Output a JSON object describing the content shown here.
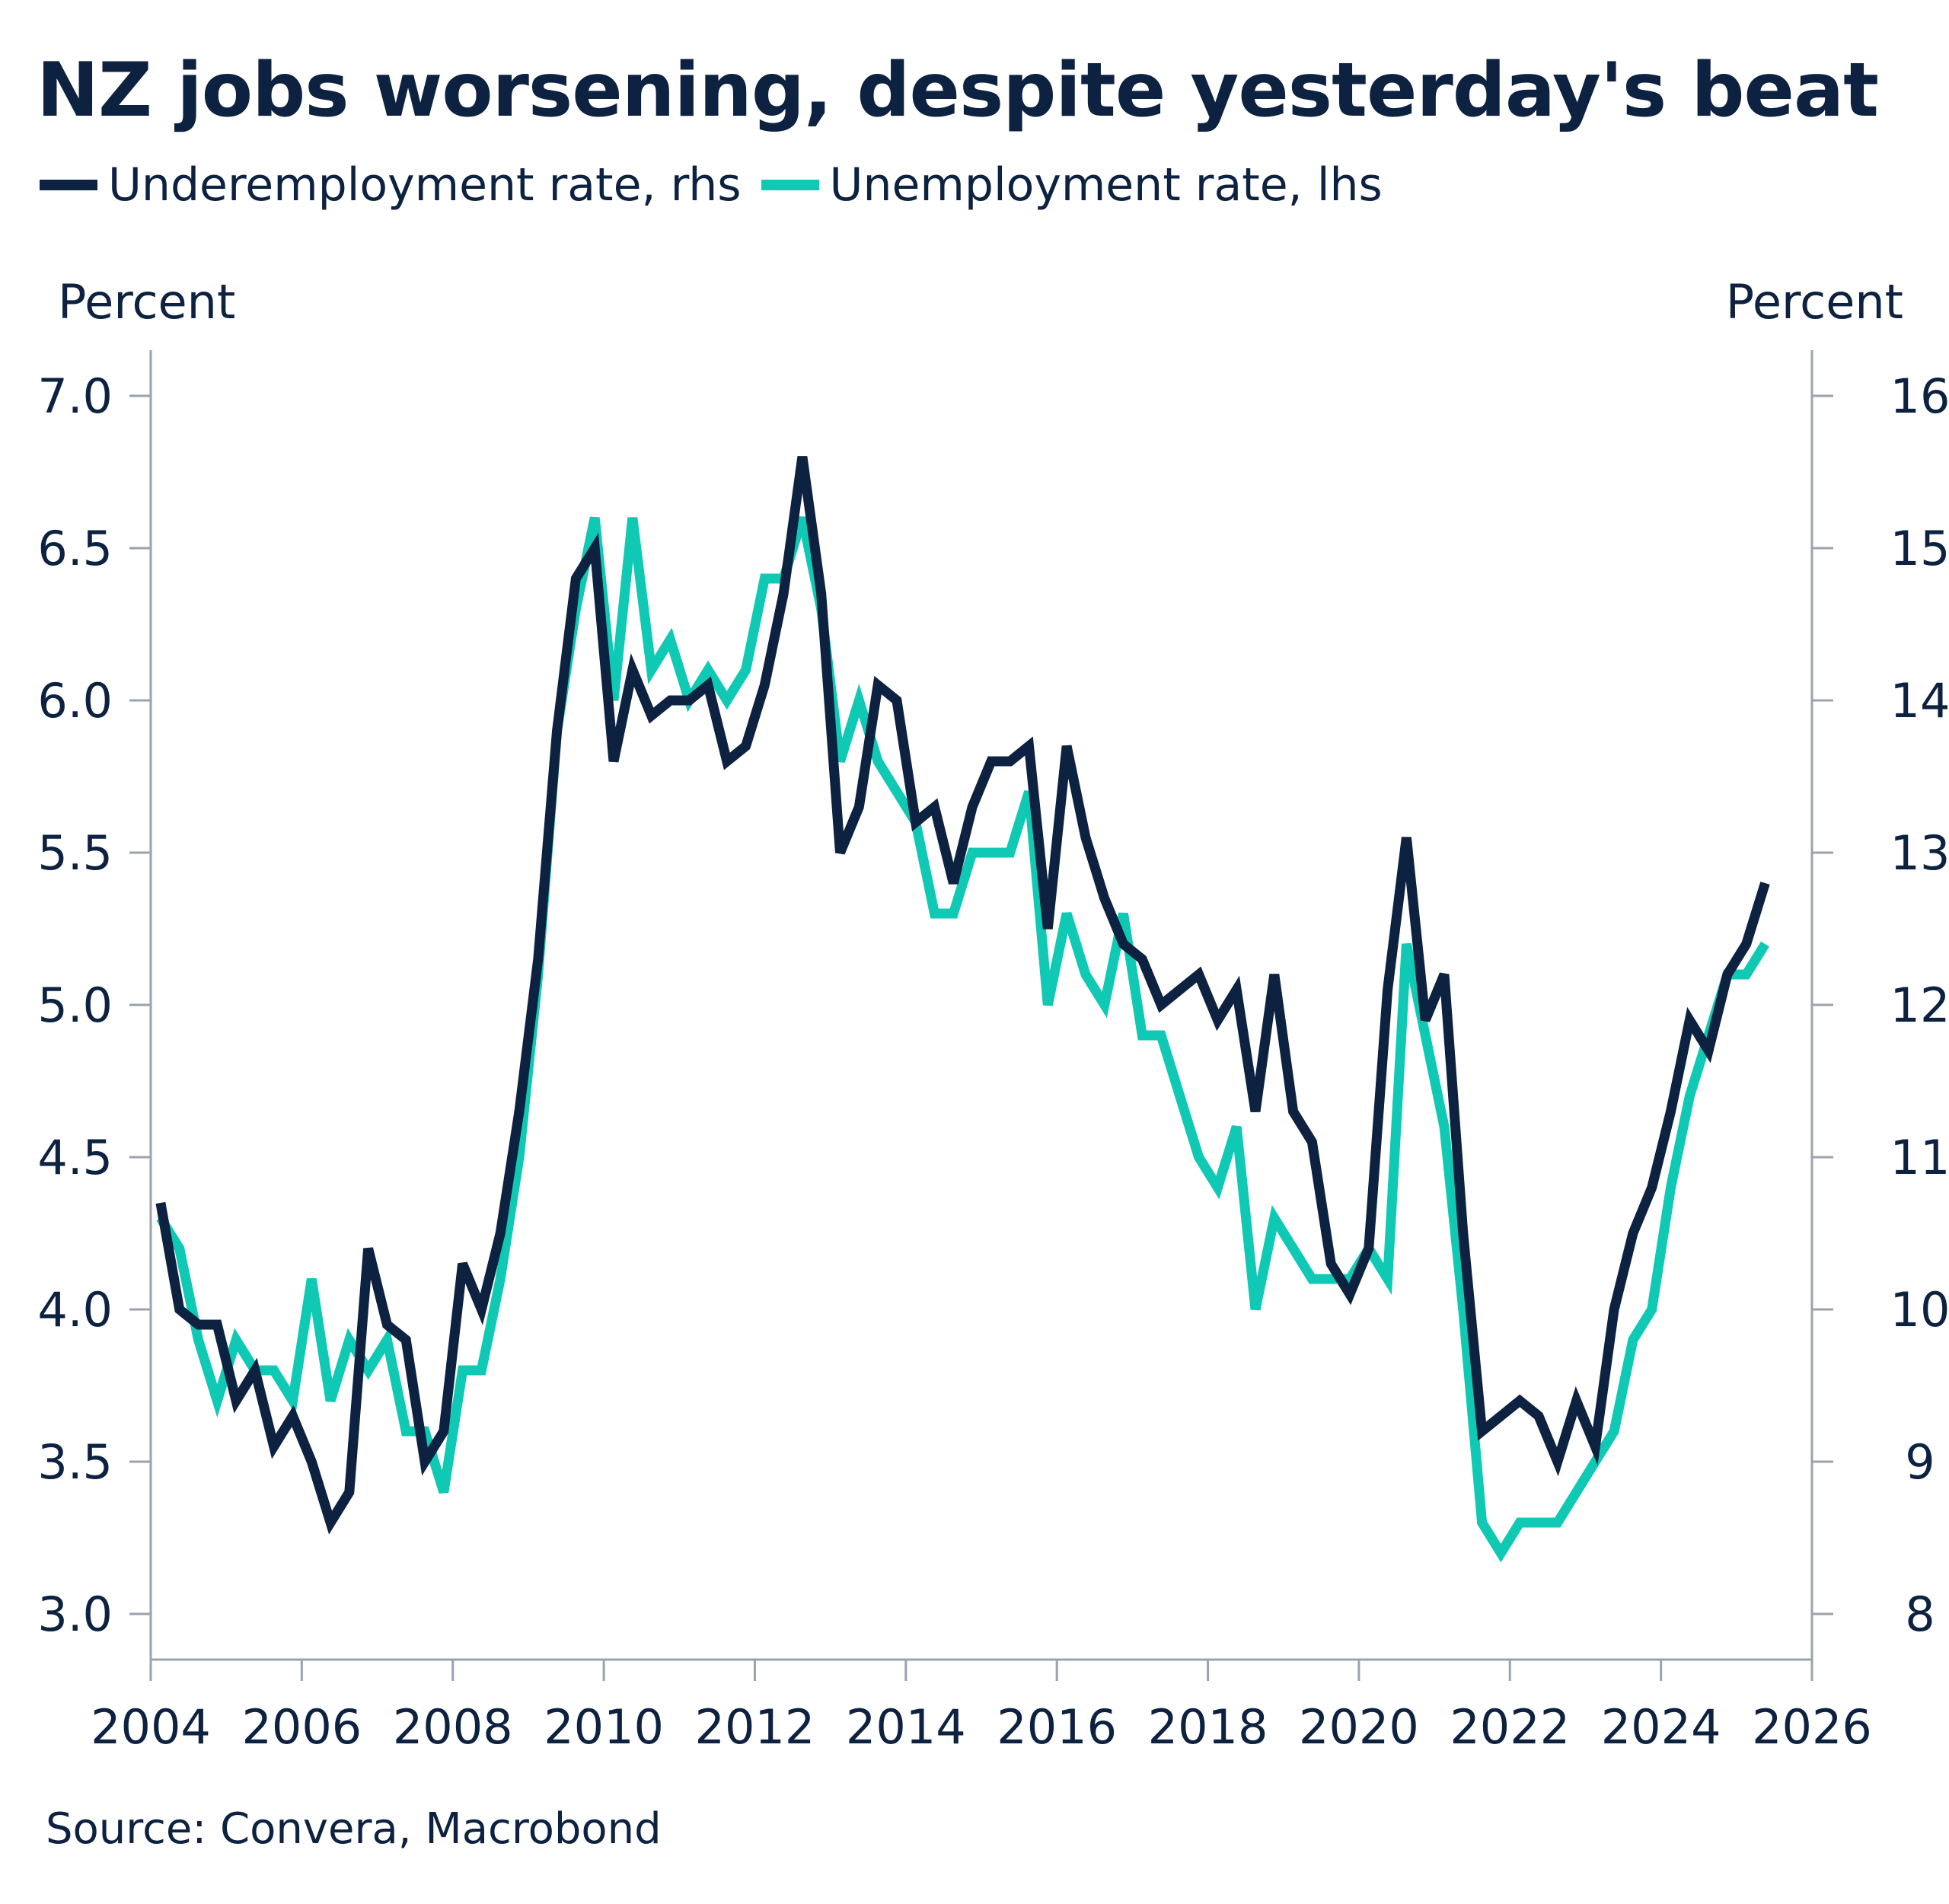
{
  "title": "NZ jobs worsening, despite yesterday's beat",
  "legend": [
    {
      "label": "Underemployment rate, rhs",
      "color": "#0d2140"
    },
    {
      "label": "Unemployment rate, lhs",
      "color": "#10c9b4"
    }
  ],
  "left_unit": "Percent",
  "right_unit": "Percent",
  "source": "Source: Convera, Macrobond",
  "chart_data": {
    "type": "line",
    "title": "NZ jobs worsening, despite yesterday's beat",
    "x_ticks": [
      2004,
      2006,
      2008,
      2010,
      2012,
      2014,
      2016,
      2018,
      2020,
      2022,
      2024,
      2026
    ],
    "xlim": [
      2004,
      2026
    ],
    "left_axis": {
      "label": "Percent",
      "ylim": [
        3.0,
        7.0
      ],
      "ticks": [
        "3.0",
        "3.5",
        "4.0",
        "4.5",
        "5.0",
        "5.5",
        "6.0",
        "6.5",
        "7.0"
      ]
    },
    "right_axis": {
      "label": "Percent",
      "ylim": [
        8,
        16
      ],
      "ticks": [
        "8",
        "9",
        "10",
        "11",
        "12",
        "13",
        "14",
        "15",
        "16"
      ]
    },
    "grid": false,
    "legend_position": "top-left",
    "series": [
      {
        "name": "Unemployment rate, lhs",
        "axis": "left",
        "color": "#10c9b4",
        "points": [
          [
            2004.13,
            4.3
          ],
          [
            2004.38,
            4.2
          ],
          [
            2004.63,
            3.9
          ],
          [
            2004.88,
            3.7
          ],
          [
            2005.13,
            3.9
          ],
          [
            2005.38,
            3.8
          ],
          [
            2005.63,
            3.8
          ],
          [
            2005.88,
            3.7
          ],
          [
            2006.13,
            4.1
          ],
          [
            2006.38,
            3.7
          ],
          [
            2006.63,
            3.9
          ],
          [
            2006.88,
            3.8
          ],
          [
            2007.13,
            3.9
          ],
          [
            2007.38,
            3.6
          ],
          [
            2007.63,
            3.6
          ],
          [
            2007.88,
            3.4
          ],
          [
            2008.13,
            3.8
          ],
          [
            2008.38,
            3.8
          ],
          [
            2008.63,
            4.1
          ],
          [
            2008.88,
            4.5
          ],
          [
            2009.13,
            5.1
          ],
          [
            2009.38,
            5.9
          ],
          [
            2009.63,
            6.3
          ],
          [
            2009.88,
            6.6
          ],
          [
            2010.13,
            6.0
          ],
          [
            2010.38,
            6.6
          ],
          [
            2010.63,
            6.1
          ],
          [
            2010.88,
            6.2
          ],
          [
            2011.13,
            6.0
          ],
          [
            2011.38,
            6.1
          ],
          [
            2011.63,
            6.0
          ],
          [
            2011.88,
            6.1
          ],
          [
            2012.13,
            6.4
          ],
          [
            2012.38,
            6.4
          ],
          [
            2012.63,
            6.6
          ],
          [
            2012.88,
            6.3
          ],
          [
            2013.13,
            5.8
          ],
          [
            2013.38,
            6.0
          ],
          [
            2013.63,
            5.8
          ],
          [
            2013.88,
            5.7
          ],
          [
            2014.13,
            5.6
          ],
          [
            2014.38,
            5.3
          ],
          [
            2014.63,
            5.3
          ],
          [
            2014.88,
            5.5
          ],
          [
            2015.13,
            5.5
          ],
          [
            2015.38,
            5.5
          ],
          [
            2015.63,
            5.7
          ],
          [
            2015.88,
            5.0
          ],
          [
            2016.13,
            5.3
          ],
          [
            2016.38,
            5.1
          ],
          [
            2016.63,
            5.0
          ],
          [
            2016.88,
            5.3
          ],
          [
            2017.13,
            4.9
          ],
          [
            2017.38,
            4.9
          ],
          [
            2017.63,
            4.7
          ],
          [
            2017.88,
            4.5
          ],
          [
            2018.13,
            4.4
          ],
          [
            2018.38,
            4.6
          ],
          [
            2018.63,
            4.0
          ],
          [
            2018.88,
            4.3
          ],
          [
            2019.13,
            4.2
          ],
          [
            2019.38,
            4.1
          ],
          [
            2019.63,
            4.1
          ],
          [
            2019.88,
            4.1
          ],
          [
            2020.13,
            4.2
          ],
          [
            2020.38,
            4.1
          ],
          [
            2020.63,
            5.2
          ],
          [
            2020.88,
            4.9
          ],
          [
            2021.13,
            4.6
          ],
          [
            2021.38,
            4.0
          ],
          [
            2021.63,
            3.3
          ],
          [
            2021.88,
            3.2
          ],
          [
            2022.13,
            3.3
          ],
          [
            2022.38,
            3.3
          ],
          [
            2022.63,
            3.3
          ],
          [
            2022.88,
            3.4
          ],
          [
            2023.13,
            3.5
          ],
          [
            2023.38,
            3.6
          ],
          [
            2023.63,
            3.9
          ],
          [
            2023.88,
            4.0
          ],
          [
            2024.13,
            4.4
          ],
          [
            2024.38,
            4.7
          ],
          [
            2024.63,
            4.9
          ],
          [
            2024.88,
            5.1
          ],
          [
            2025.13,
            5.1
          ],
          [
            2025.38,
            5.2
          ]
        ]
      },
      {
        "name": "Underemployment rate, rhs",
        "axis": "right",
        "color": "#0d2140",
        "points": [
          [
            2004.13,
            10.7
          ],
          [
            2004.38,
            10.0
          ],
          [
            2004.63,
            9.9
          ],
          [
            2004.88,
            9.9
          ],
          [
            2005.13,
            9.4
          ],
          [
            2005.38,
            9.6
          ],
          [
            2005.63,
            9.1
          ],
          [
            2005.88,
            9.3
          ],
          [
            2006.13,
            9.0
          ],
          [
            2006.38,
            8.6
          ],
          [
            2006.63,
            8.8
          ],
          [
            2006.88,
            10.4
          ],
          [
            2007.13,
            9.9
          ],
          [
            2007.38,
            9.8
          ],
          [
            2007.63,
            9.0
          ],
          [
            2007.88,
            9.2
          ],
          [
            2008.13,
            10.3
          ],
          [
            2008.38,
            10.0
          ],
          [
            2008.63,
            10.5
          ],
          [
            2008.88,
            11.3
          ],
          [
            2009.13,
            12.3
          ],
          [
            2009.38,
            13.8
          ],
          [
            2009.63,
            14.8
          ],
          [
            2009.88,
            15.0
          ],
          [
            2010.13,
            13.6
          ],
          [
            2010.38,
            14.2
          ],
          [
            2010.63,
            13.9
          ],
          [
            2010.88,
            14.0
          ],
          [
            2011.13,
            14.0
          ],
          [
            2011.38,
            14.1
          ],
          [
            2011.63,
            13.6
          ],
          [
            2011.88,
            13.7
          ],
          [
            2012.13,
            14.1
          ],
          [
            2012.38,
            14.7
          ],
          [
            2012.63,
            15.6
          ],
          [
            2012.88,
            14.7
          ],
          [
            2013.13,
            13.0
          ],
          [
            2013.38,
            13.3
          ],
          [
            2013.63,
            14.1
          ],
          [
            2013.88,
            14.0
          ],
          [
            2014.13,
            13.2
          ],
          [
            2014.38,
            13.3
          ],
          [
            2014.63,
            12.8
          ],
          [
            2014.88,
            13.3
          ],
          [
            2015.13,
            13.6
          ],
          [
            2015.38,
            13.6
          ],
          [
            2015.63,
            13.7
          ],
          [
            2015.88,
            12.5
          ],
          [
            2016.13,
            13.7
          ],
          [
            2016.38,
            13.1
          ],
          [
            2016.63,
            12.7
          ],
          [
            2016.88,
            12.4
          ],
          [
            2017.13,
            12.3
          ],
          [
            2017.38,
            12.0
          ],
          [
            2017.63,
            12.1
          ],
          [
            2017.88,
            12.2
          ],
          [
            2018.13,
            11.9
          ],
          [
            2018.38,
            12.1
          ],
          [
            2018.63,
            11.3
          ],
          [
            2018.88,
            12.2
          ],
          [
            2019.13,
            11.3
          ],
          [
            2019.38,
            11.1
          ],
          [
            2019.63,
            10.3
          ],
          [
            2019.88,
            10.1
          ],
          [
            2020.13,
            10.4
          ],
          [
            2020.38,
            12.1
          ],
          [
            2020.63,
            13.1
          ],
          [
            2020.88,
            11.9
          ],
          [
            2021.13,
            12.2
          ],
          [
            2021.38,
            10.5
          ],
          [
            2021.63,
            9.2
          ],
          [
            2021.88,
            9.3
          ],
          [
            2022.13,
            9.4
          ],
          [
            2022.38,
            9.3
          ],
          [
            2022.63,
            9.0
          ],
          [
            2022.88,
            9.4
          ],
          [
            2023.13,
            9.1
          ],
          [
            2023.38,
            10.0
          ],
          [
            2023.63,
            10.5
          ],
          [
            2023.88,
            10.8
          ],
          [
            2024.13,
            11.3
          ],
          [
            2024.38,
            11.9
          ],
          [
            2024.63,
            11.7
          ],
          [
            2024.88,
            12.2
          ],
          [
            2025.13,
            12.4
          ],
          [
            2025.38,
            12.8
          ]
        ]
      }
    ]
  }
}
